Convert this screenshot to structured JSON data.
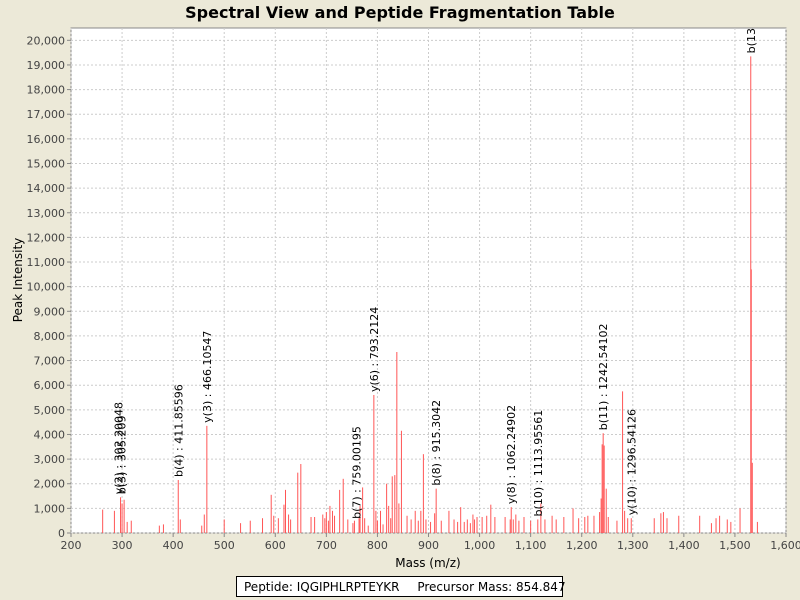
{
  "window": {
    "background": "#ECE9D8"
  },
  "chart_data": {
    "type": "bar",
    "title": "Spectral View and Peptide Fragmentation Table",
    "xlabel": "Mass (m/z)",
    "ylabel": "Peak Intensity",
    "xlim": [
      200,
      1600
    ],
    "ylim": [
      0,
      20500
    ],
    "xticks": [
      200,
      300,
      400,
      500,
      600,
      700,
      800,
      900,
      1000,
      1100,
      1200,
      1300,
      1400,
      1500,
      1600
    ],
    "xtick_labels": [
      "200",
      "300",
      "400",
      "500",
      "600",
      "700",
      "800",
      "900",
      "1,000",
      "1,100",
      "1,200",
      "1,300",
      "1,400",
      "1,500",
      "1,600"
    ],
    "yticks": [
      0,
      1000,
      2000,
      3000,
      4000,
      5000,
      6000,
      7000,
      8000,
      9000,
      10000,
      11000,
      12000,
      13000,
      14000,
      15000,
      16000,
      17000,
      18000,
      19000,
      20000
    ],
    "ytick_labels": [
      "0",
      "1,000",
      "2,000",
      "3,000",
      "4,000",
      "5,000",
      "6,000",
      "7,000",
      "8,000",
      "9,000",
      "10,000",
      "11,000",
      "12,000",
      "13,000",
      "14,000",
      "15,000",
      "16,000",
      "17,000",
      "18,000",
      "19,000",
      "20,000"
    ],
    "grid": true,
    "color": "#FF5555",
    "peaks": [
      [
        262,
        950
      ],
      [
        285,
        900
      ],
      [
        297,
        1450
      ],
      [
        300,
        1200
      ],
      [
        304,
        1350
      ],
      [
        310,
        450
      ],
      [
        318,
        500
      ],
      [
        373,
        300
      ],
      [
        381,
        350
      ],
      [
        410,
        2150
      ],
      [
        414,
        550
      ],
      [
        456,
        300
      ],
      [
        461,
        750
      ],
      [
        466,
        4350
      ],
      [
        500,
        550
      ],
      [
        532,
        400
      ],
      [
        551,
        500
      ],
      [
        575,
        600
      ],
      [
        592,
        1550
      ],
      [
        597,
        700
      ],
      [
        606,
        600
      ],
      [
        617,
        1150
      ],
      [
        620,
        1750
      ],
      [
        626,
        750
      ],
      [
        630,
        550
      ],
      [
        644,
        2450
      ],
      [
        650,
        2800
      ],
      [
        670,
        650
      ],
      [
        677,
        650
      ],
      [
        693,
        750
      ],
      [
        697,
        600
      ],
      [
        700,
        850
      ],
      [
        704,
        500
      ],
      [
        707,
        1100
      ],
      [
        712,
        900
      ],
      [
        716,
        700
      ],
      [
        726,
        1750
      ],
      [
        733,
        2200
      ],
      [
        742,
        550
      ],
      [
        752,
        400
      ],
      [
        755,
        500
      ],
      [
        764,
        600
      ],
      [
        766,
        1100
      ],
      [
        771,
        1850
      ],
      [
        775,
        600
      ],
      [
        782,
        300
      ],
      [
        793,
        5600
      ],
      [
        797,
        900
      ],
      [
        800,
        500
      ],
      [
        806,
        900
      ],
      [
        811,
        350
      ],
      [
        818,
        2000
      ],
      [
        822,
        1100
      ],
      [
        826,
        600
      ],
      [
        829,
        2300
      ],
      [
        834,
        2350
      ],
      [
        838,
        7350
      ],
      [
        842,
        1200
      ],
      [
        847,
        4150
      ],
      [
        858,
        700
      ],
      [
        866,
        550
      ],
      [
        874,
        900
      ],
      [
        880,
        500
      ],
      [
        885,
        900
      ],
      [
        890,
        3200
      ],
      [
        895,
        550
      ],
      [
        904,
        450
      ],
      [
        912,
        800
      ],
      [
        915,
        1800
      ],
      [
        925,
        500
      ],
      [
        940,
        900
      ],
      [
        950,
        550
      ],
      [
        957,
        450
      ],
      [
        963,
        1050
      ],
      [
        970,
        450
      ],
      [
        976,
        550
      ],
      [
        982,
        400
      ],
      [
        987,
        750
      ],
      [
        990,
        550
      ],
      [
        995,
        650
      ],
      [
        1005,
        650
      ],
      [
        1014,
        700
      ],
      [
        1022,
        1150
      ],
      [
        1030,
        650
      ],
      [
        1050,
        650
      ],
      [
        1060,
        550
      ],
      [
        1062,
        1050
      ],
      [
        1066,
        550
      ],
      [
        1071,
        750
      ],
      [
        1077,
        500
      ],
      [
        1087,
        650
      ],
      [
        1100,
        500
      ],
      [
        1114,
        550
      ],
      [
        1120,
        1200
      ],
      [
        1128,
        550
      ],
      [
        1142,
        700
      ],
      [
        1150,
        550
      ],
      [
        1165,
        650
      ],
      [
        1183,
        1000
      ],
      [
        1194,
        600
      ],
      [
        1206,
        650
      ],
      [
        1212,
        700
      ],
      [
        1224,
        700
      ],
      [
        1235,
        850
      ],
      [
        1238,
        1400
      ],
      [
        1240,
        3600
      ],
      [
        1242,
        4050
      ],
      [
        1244,
        3550
      ],
      [
        1248,
        1800
      ],
      [
        1252,
        650
      ],
      [
        1269,
        500
      ],
      [
        1280,
        5750
      ],
      [
        1284,
        900
      ],
      [
        1290,
        600
      ],
      [
        1297,
        600
      ],
      [
        1342,
        600
      ],
      [
        1355,
        800
      ],
      [
        1360,
        850
      ],
      [
        1367,
        600
      ],
      [
        1390,
        700
      ],
      [
        1431,
        700
      ],
      [
        1454,
        400
      ],
      [
        1463,
        600
      ],
      [
        1470,
        700
      ],
      [
        1485,
        550
      ],
      [
        1492,
        450
      ],
      [
        1510,
        1000
      ],
      [
        1531,
        19350
      ],
      [
        1532,
        10700
      ],
      [
        1534,
        2850
      ],
      [
        1544,
        450
      ]
    ],
    "annotations": [
      {
        "x": 293,
        "y": 1450,
        "label": "y(2) : 302.20048"
      },
      {
        "x": 299,
        "y": 1450,
        "label": "b(3) : 305.209"
      },
      {
        "x": 410,
        "y": 2150,
        "label": "b(4) : 411.85596"
      },
      {
        "x": 466,
        "y": 4350,
        "label": "y(3) : 466.10547"
      },
      {
        "x": 759,
        "y": 450,
        "label": "b(7) : 759.00195"
      },
      {
        "x": 793,
        "y": 5600,
        "label": "y(6) : 793.2124"
      },
      {
        "x": 915,
        "y": 1800,
        "label": "b(8) : 915.3042"
      },
      {
        "x": 1062,
        "y": 1050,
        "label": "y(8) : 1062.24902"
      },
      {
        "x": 1114,
        "y": 550,
        "label": "b(10) : 1113.95561"
      },
      {
        "x": 1242,
        "y": 4050,
        "label": "b(11) : 1242.54102"
      },
      {
        "x": 1297,
        "y": 600,
        "label": "y(10) : 1296.54126"
      },
      {
        "x": 1531,
        "y": 19350,
        "label": "b(13"
      }
    ]
  },
  "footer": {
    "peptide": "Peptide: IQGIPHLRPTEYKR",
    "precursor": "Precursor Mass: 854.847"
  }
}
